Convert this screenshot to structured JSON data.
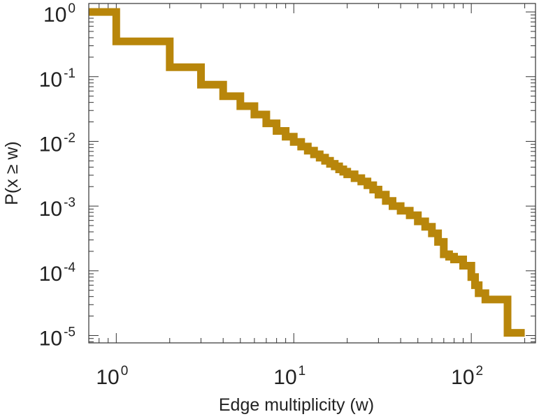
{
  "chart_data": {
    "type": "line",
    "step": true,
    "xscale": "log",
    "yscale": "log",
    "xlabel": "Edge multiplicity (w)",
    "ylabel": "P(x ≥ w)",
    "xlim": [
      0.7,
      230
    ],
    "ylim": [
      7.7e-06,
      1.35
    ],
    "x_ticks": [
      {
        "value": 1,
        "base": "10",
        "exp": "0"
      },
      {
        "value": 10,
        "base": "10",
        "exp": "1"
      },
      {
        "value": 100,
        "base": "10",
        "exp": "2"
      }
    ],
    "y_ticks": [
      {
        "value": 1,
        "base": "10",
        "exp": "0"
      },
      {
        "value": 0.1,
        "base": "10",
        "exp": "-1"
      },
      {
        "value": 0.01,
        "base": "10",
        "exp": "-2"
      },
      {
        "value": 0.001,
        "base": "10",
        "exp": "-3"
      },
      {
        "value": 0.0001,
        "base": "10",
        "exp": "-4"
      },
      {
        "value": 1e-05,
        "base": "10",
        "exp": "-5"
      }
    ],
    "grid": false,
    "series": [
      {
        "color": "#b8860b",
        "x": [
          0.7,
          1,
          2,
          3,
          4,
          5,
          6,
          7,
          8,
          9,
          10,
          11,
          12,
          13,
          14,
          15,
          16,
          17,
          18,
          19,
          20,
          22,
          24,
          26,
          28,
          30,
          33,
          36,
          40,
          45,
          50,
          55,
          60,
          65,
          70,
          75,
          80,
          90,
          100,
          105,
          110,
          120,
          150,
          160,
          200
        ],
        "y": [
          1,
          0.35,
          0.14,
          0.075,
          0.05,
          0.035,
          0.026,
          0.019,
          0.0145,
          0.0118,
          0.0098,
          0.0083,
          0.0072,
          0.0063,
          0.0056,
          0.005,
          0.0045,
          0.0041,
          0.0037,
          0.0034,
          0.0031,
          0.0027,
          0.0024,
          0.0021,
          0.0018,
          0.0015,
          0.0012,
          0.001,
          0.00085,
          0.00072,
          0.00058,
          0.00048,
          0.00038,
          0.00028,
          0.00018,
          0.000165,
          0.00015,
          0.00012,
          8e-05,
          6e-05,
          4.5e-05,
          3.6e-05,
          3.6e-05,
          1.1e-05,
          1.1e-05
        ]
      }
    ]
  }
}
